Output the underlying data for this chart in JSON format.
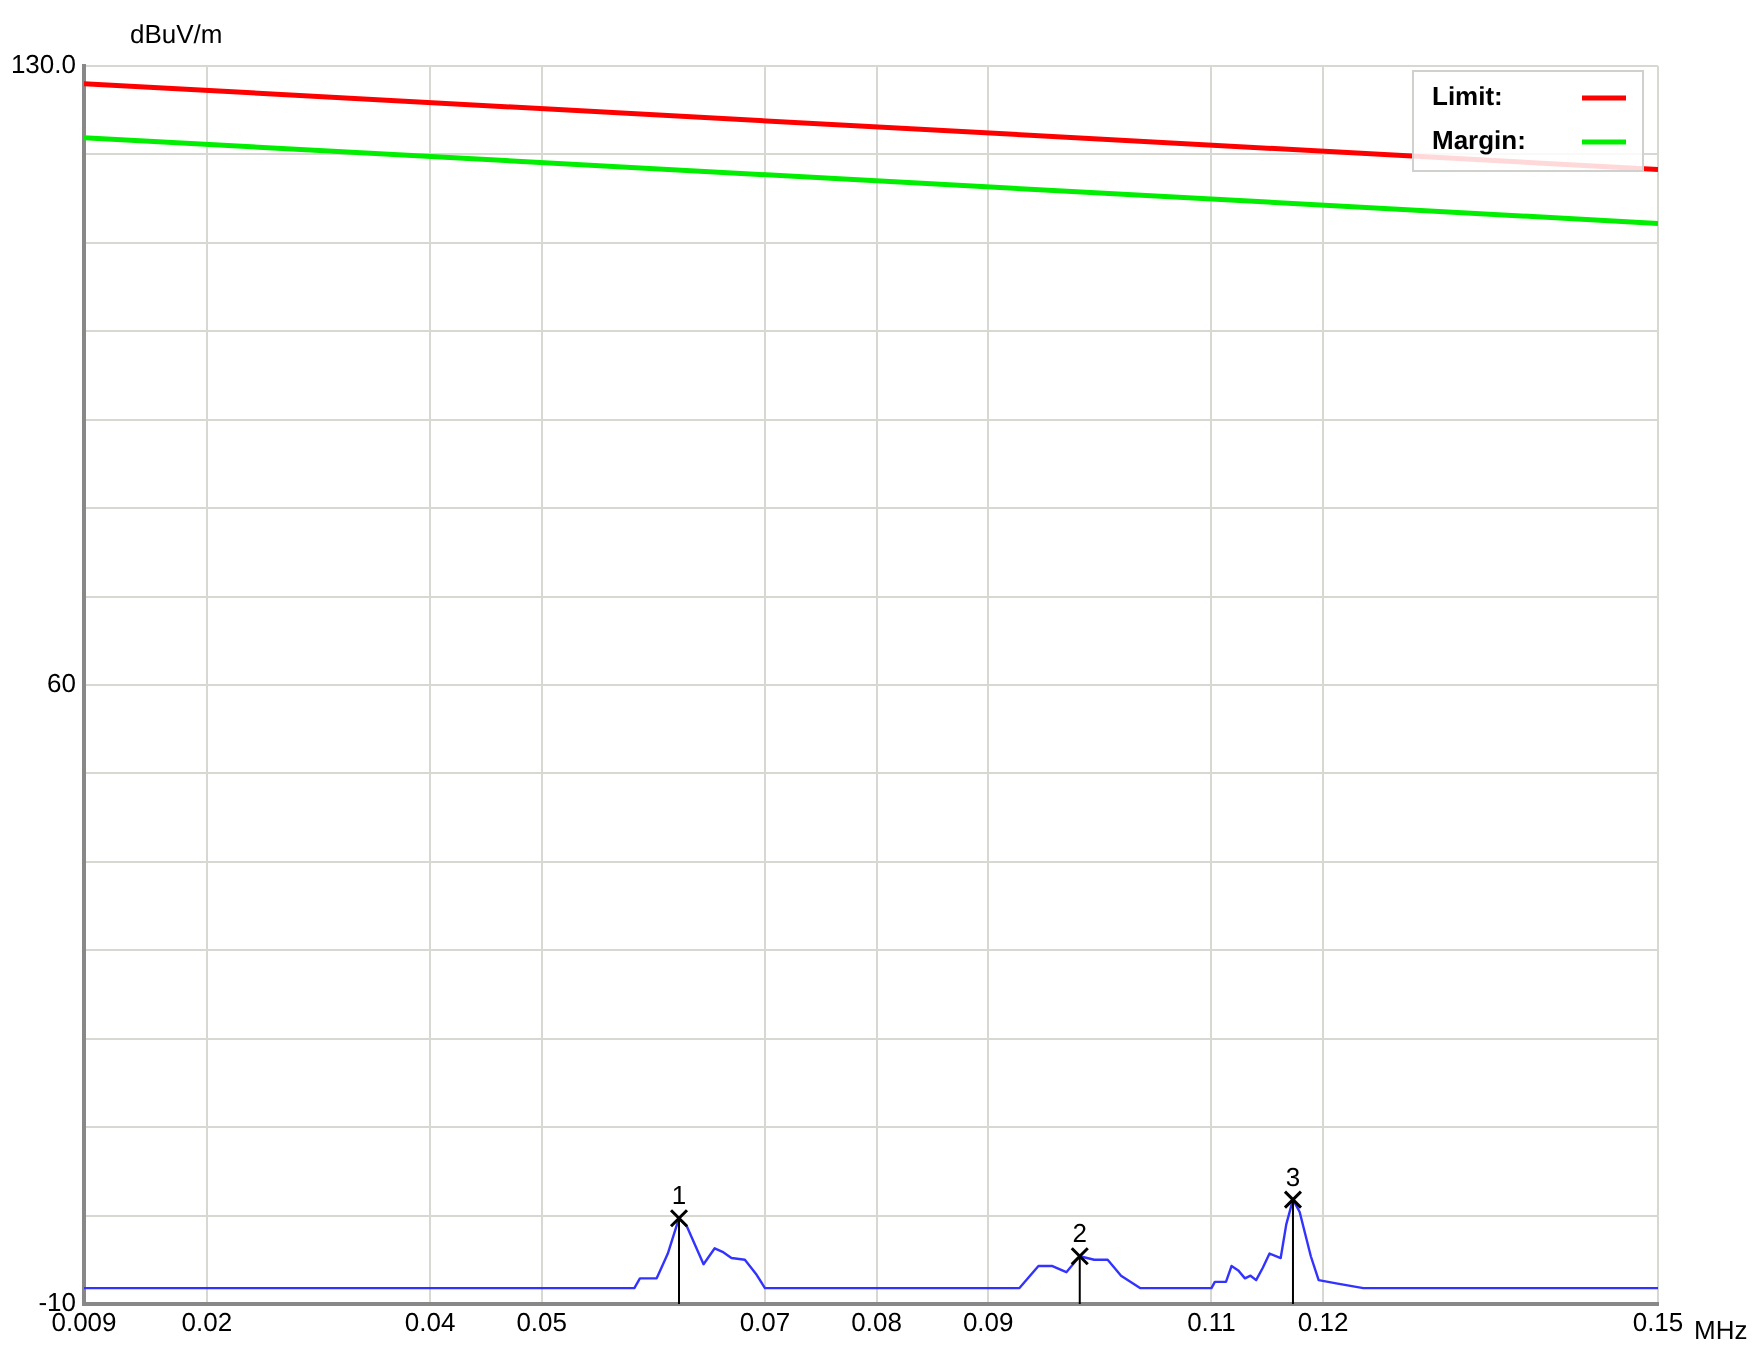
{
  "chart_data": {
    "type": "line",
    "xlabel": "MHz",
    "ylabel": "dBuV/m",
    "xlim": [
      0.009,
      0.15
    ],
    "xticks": [
      0.009,
      0.02,
      0.04,
      0.05,
      0.07,
      0.08,
      0.09,
      0.11,
      0.12,
      0.15
    ],
    "ylim": [
      -10,
      130
    ],
    "yticks": [
      -10,
      {
        "value": 0,
        "label": null
      },
      {
        "value": 10,
        "label": null
      },
      {
        "value": 20,
        "label": null
      },
      {
        "value": 30,
        "label": null
      },
      {
        "value": 40,
        "label": null
      },
      {
        "value": 50,
        "label": null
      },
      60,
      {
        "value": 70,
        "label": null
      },
      {
        "value": 80,
        "label": null
      },
      {
        "value": 90,
        "label": null
      },
      {
        "value": 100,
        "label": null
      },
      {
        "value": 110,
        "label": null
      },
      {
        "value": 120,
        "label": null
      },
      {
        "value": 130,
        "label": "130.0"
      }
    ],
    "grid": true,
    "legend": "top right",
    "marker": "none",
    "line_style": "solid",
    "series": [
      {
        "name": "Limit:",
        "color": "#ff0000",
        "x": [
          0.009,
          0.15
        ],
        "values": [
          128.0,
          118.3
        ]
      },
      {
        "name": "Margin:",
        "color": "#00ee00",
        "x": [
          0.009,
          0.15
        ],
        "values": [
          121.9,
          112.2
        ]
      },
      {
        "color": "#3333ff",
        "x": [
          0.009,
          0.0583,
          0.0588,
          0.0603,
          0.0613,
          0.0623,
          0.063,
          0.0645,
          0.0655,
          0.0662,
          0.067,
          0.0682,
          0.0692,
          0.07,
          0.0928,
          0.0945,
          0.0957,
          0.097,
          0.0982,
          0.0995,
          0.1007,
          0.1019,
          0.1036,
          0.11,
          0.1103,
          0.1113,
          0.1118,
          0.1124,
          0.113,
          0.1135,
          0.114,
          0.1146,
          0.1152,
          0.1162,
          0.1167,
          0.1173,
          0.1179,
          0.1189,
          0.1196,
          0.1213,
          0.1236,
          0.15
        ],
        "values": [
          -8.2,
          -8.2,
          -7.1,
          -7.1,
          -4.3,
          -0.3,
          -1.2,
          -5.5,
          -3.7,
          -4.1,
          -4.8,
          -5.0,
          -6.6,
          -8.2,
          -8.2,
          -5.7,
          -5.7,
          -6.4,
          -4.6,
          -5.0,
          -5.0,
          -6.8,
          -8.2,
          -8.2,
          -7.5,
          -7.5,
          -5.7,
          -6.2,
          -7.1,
          -6.8,
          -7.3,
          -5.9,
          -4.3,
          -4.8,
          -1.0,
          1.8,
          0.4,
          -4.6,
          -7.3,
          -7.7,
          -8.2,
          -8.2
        ]
      }
    ],
    "annotations": [
      {
        "text": "1",
        "x": 0.0623,
        "y": -0.3
      },
      {
        "text": "2",
        "x": 0.0982,
        "y": -4.6
      },
      {
        "text": "3",
        "x": 0.1173,
        "y": 1.8
      }
    ]
  }
}
